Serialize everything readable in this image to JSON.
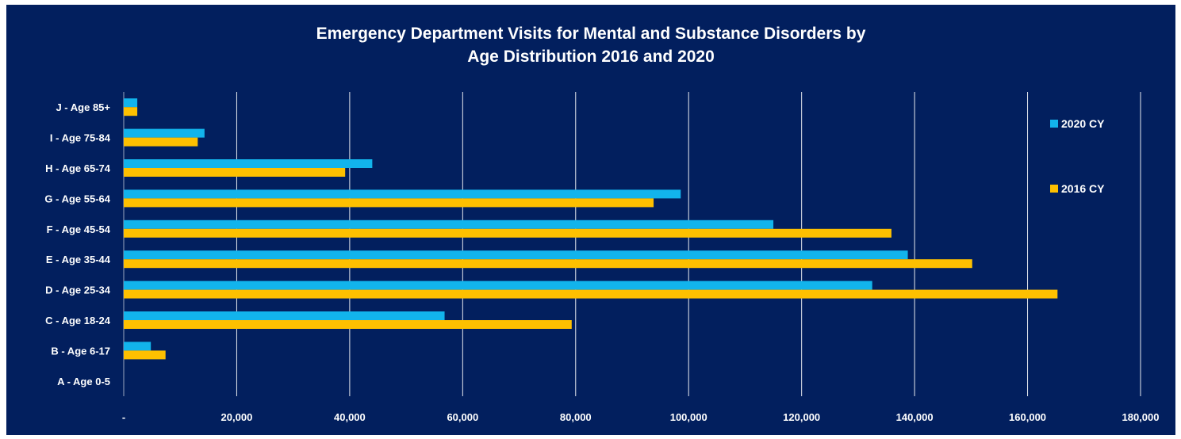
{
  "chart_data": {
    "type": "bar",
    "orientation": "horizontal",
    "title_lines": [
      "Emergency Department Visits for Mental and Substance Disorders by",
      "Age Distribution 2016 and 2020"
    ],
    "categories": [
      "A - Age 0-5",
      "B - Age 6-17",
      "C - Age 18-24",
      "D - Age 25-34",
      "E - Age 35-44",
      "F - Age 45-54",
      "G - Age 55-64",
      "H - Age 65-74",
      "I - Age 75-84",
      "J - Age 85+"
    ],
    "series": [
      {
        "name": "2020 CY",
        "color": "#12b4ec",
        "values": [
          0,
          4800,
          56800,
          132500,
          138800,
          115000,
          98600,
          44000,
          14300,
          2400
        ]
      },
      {
        "name": "2016 CY",
        "color": "#fec000",
        "values": [
          0,
          7400,
          79300,
          165300,
          150200,
          135900,
          93800,
          39200,
          13100,
          2400
        ]
      }
    ],
    "x_ticks": [
      0,
      20000,
      40000,
      60000,
      80000,
      100000,
      120000,
      140000,
      160000,
      180000
    ],
    "x_tick_labels": [
      "-",
      "20,000",
      "40,000",
      "60,000",
      "80,000",
      "100,000",
      "120,000",
      "140,000",
      "160,000",
      "180,000"
    ],
    "xlim": [
      0,
      180000
    ],
    "grid": "vertical",
    "legend_position": "right",
    "xlabel": "",
    "ylabel": ""
  }
}
